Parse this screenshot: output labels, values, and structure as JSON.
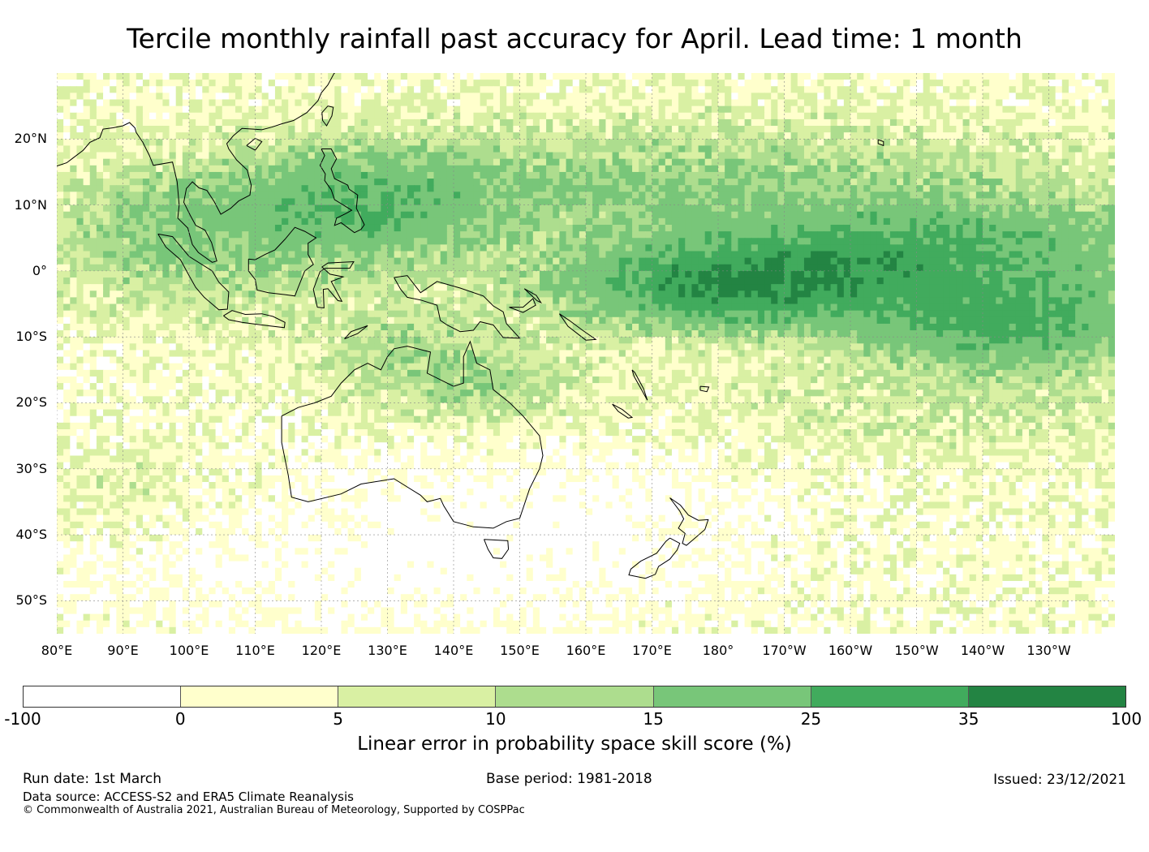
{
  "title": "Tercile monthly rainfall past accuracy for April. Lead time: 1 month",
  "map": {
    "lon_range": [
      80,
      240
    ],
    "lat_range": [
      -55,
      30
    ],
    "lat_labels": [
      "20°N",
      "10°N",
      "0°",
      "10°S",
      "20°S",
      "30°S",
      "40°S",
      "50°S"
    ],
    "lat_values": [
      20,
      10,
      0,
      -10,
      -20,
      -30,
      -40,
      -50
    ],
    "lon_labels": [
      "80°E",
      "90°E",
      "100°E",
      "110°E",
      "120°E",
      "130°E",
      "140°E",
      "150°E",
      "160°E",
      "170°E",
      "180°",
      "170°W",
      "160°W",
      "150°W",
      "140°W",
      "130°W"
    ],
    "lon_values": [
      80,
      90,
      100,
      110,
      120,
      130,
      140,
      150,
      160,
      170,
      180,
      190,
      200,
      210,
      220,
      230
    ],
    "coastline_color": "#000000",
    "gridline_color": "#888888"
  },
  "colorbar": {
    "ticks": [
      "-100",
      "0",
      "5",
      "10",
      "15",
      "25",
      "35",
      "100"
    ],
    "colors": [
      "#ffffff",
      "#ffffcc",
      "#d9f0a3",
      "#addd8e",
      "#78c679",
      "#41ab5d",
      "#238443"
    ],
    "label": "Linear error in probability space skill score (%)"
  },
  "footer": {
    "run_date": "Run date: 1st March",
    "base_period": "Base period: 1981-2018",
    "issued": "Issued: 23/12/2021",
    "data_source": "Data source: ACCESS-S2 and ERA5 Climate Reanalysis",
    "copyright": "© Commonwealth of Australia 2021, Australian Bureau of Meteorology, Supported by COSPPac"
  }
}
